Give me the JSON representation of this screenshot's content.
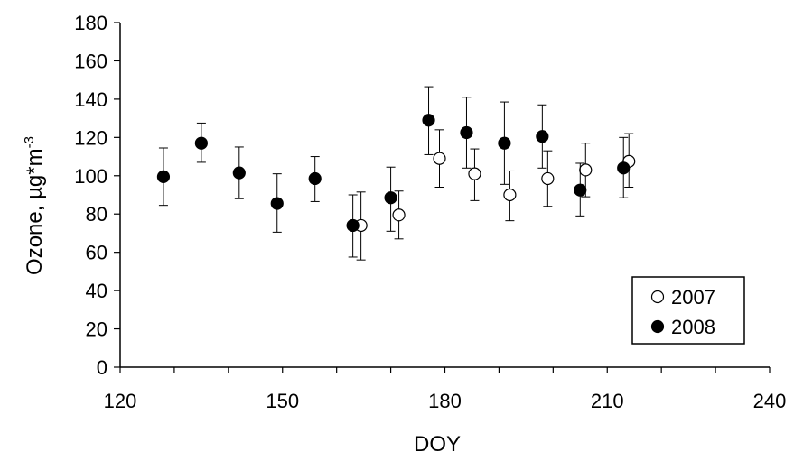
{
  "chart_data": {
    "type": "scatter",
    "xlabel": "DOY",
    "ylabel_main": "Ozone, µg*m",
    "ylabel_sup": "-3",
    "xlim": [
      120,
      240
    ],
    "ylim": [
      0,
      180
    ],
    "x_ticks": [
      120,
      150,
      180,
      210,
      240
    ],
    "x_minor_ticks": [
      130,
      140,
      160,
      170,
      190,
      200,
      220,
      230
    ],
    "y_ticks": [
      0,
      20,
      40,
      60,
      80,
      100,
      120,
      140,
      160,
      180
    ],
    "grid": false,
    "legend_position": "bottom-right",
    "error_bars": true,
    "series": [
      {
        "name": "2007",
        "marker": "open-circle",
        "points": [
          {
            "x": 164.5,
            "y": 74,
            "ylow": 56,
            "yhigh": 91.5
          },
          {
            "x": 171.5,
            "y": 79.5,
            "ylow": 67,
            "yhigh": 92
          },
          {
            "x": 179,
            "y": 109,
            "ylow": 94,
            "yhigh": 124
          },
          {
            "x": 185.5,
            "y": 101,
            "ylow": 87,
            "yhigh": 114
          },
          {
            "x": 192,
            "y": 90,
            "ylow": 76.5,
            "yhigh": 102.5
          },
          {
            "x": 199,
            "y": 98.5,
            "ylow": 84,
            "yhigh": 113
          },
          {
            "x": 206,
            "y": 103,
            "ylow": 89,
            "yhigh": 117
          },
          {
            "x": 214,
            "y": 107.5,
            "ylow": 94,
            "yhigh": 122
          }
        ]
      },
      {
        "name": "2008",
        "marker": "filled-circle",
        "points": [
          {
            "x": 128,
            "y": 99.5,
            "ylow": 84.5,
            "yhigh": 114.5
          },
          {
            "x": 135,
            "y": 117,
            "ylow": 107,
            "yhigh": 127.5
          },
          {
            "x": 142,
            "y": 101.5,
            "ylow": 88,
            "yhigh": 115
          },
          {
            "x": 149,
            "y": 85.5,
            "ylow": 70.5,
            "yhigh": 101
          },
          {
            "x": 156,
            "y": 98.5,
            "ylow": 86.5,
            "yhigh": 110
          },
          {
            "x": 163,
            "y": 74,
            "ylow": 57.5,
            "yhigh": 90
          },
          {
            "x": 170,
            "y": 88.5,
            "ylow": 71,
            "yhigh": 104.5
          },
          {
            "x": 177,
            "y": 129,
            "ylow": 111,
            "yhigh": 146.5
          },
          {
            "x": 184,
            "y": 122.5,
            "ylow": 104,
            "yhigh": 141
          },
          {
            "x": 191,
            "y": 117,
            "ylow": 95.5,
            "yhigh": 138.5
          },
          {
            "x": 198,
            "y": 120.5,
            "ylow": 104,
            "yhigh": 137
          },
          {
            "x": 205,
            "y": 92.5,
            "ylow": 79,
            "yhigh": 106.5
          },
          {
            "x": 213,
            "y": 104,
            "ylow": 88.5,
            "yhigh": 120
          }
        ]
      }
    ]
  }
}
